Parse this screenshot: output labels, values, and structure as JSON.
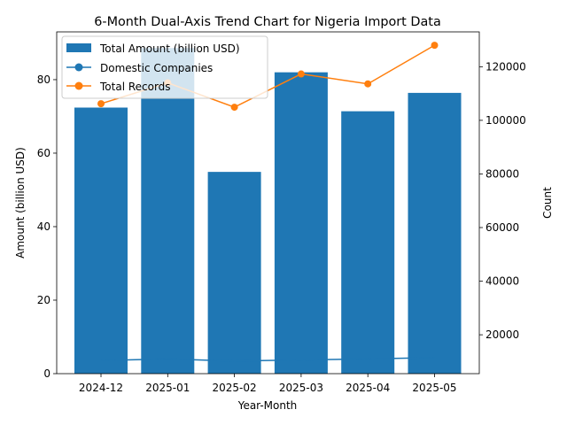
{
  "chart_data": {
    "type": "bar+line",
    "title": "6-Month Dual-Axis Trend Chart for Nigeria Import Data",
    "xlabel": "Year-Month",
    "ylabel_left": "Amount (billion USD)",
    "ylabel_right": "Count",
    "categories": [
      "2024-12",
      "2025-01",
      "2025-02",
      "2025-03",
      "2025-04",
      "2025-05"
    ],
    "bar_series": {
      "name": "Total Amount (billion USD)",
      "axis": "left",
      "color": "#1f77b4",
      "values": [
        72.4,
        88.6,
        54.9,
        82.0,
        71.4,
        76.4
      ]
    },
    "line_series": [
      {
        "name": "Domestic Companies",
        "axis": "right",
        "color": "#1f77b4",
        "values": [
          10400,
          11000,
          10200,
          10600,
          11000,
          11500
        ]
      },
      {
        "name": "Total Records",
        "axis": "right",
        "color": "#ff7f0e",
        "values": [
          106200,
          114000,
          104900,
          117300,
          113600,
          128000
        ]
      }
    ],
    "ylim_left": [
      0,
      93
    ],
    "ylim_right": [
      5500,
      133000
    ],
    "yticks_left": [
      0,
      20,
      40,
      60,
      80
    ],
    "yticks_right": [
      20000,
      40000,
      60000,
      80000,
      100000,
      120000
    ],
    "grid": false,
    "legend_position": "top-left"
  }
}
